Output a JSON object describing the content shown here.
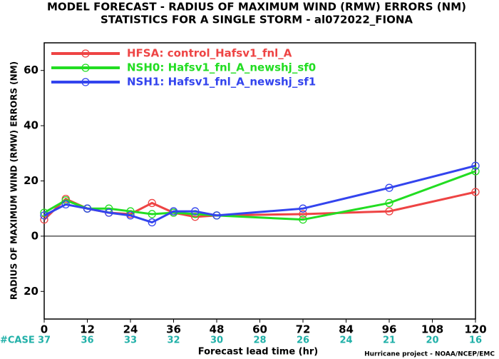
{
  "chart_data": {
    "type": "line",
    "title": "MODEL FORECAST - RADIUS OF MAXIMUM WIND (RMW) ERRORS (NM)",
    "subtitle": "STATISTICS FOR A SINGLE STORM - al072022_FIONA",
    "y_label": "RADIUS OF MAXIMUM WIND (RMW) ERRORS (NM)",
    "x_label": "Forecast lead time (hr)",
    "credit": "Hurricane project - NOAA/NCEP/EMC",
    "case_label": "#CASE",
    "case_counts": [
      37,
      36,
      33,
      32,
      30,
      28,
      26,
      24,
      21,
      20,
      16
    ],
    "x": [
      0,
      6,
      12,
      18,
      24,
      30,
      36,
      42,
      48,
      72,
      96,
      120
    ],
    "series": [
      {
        "name": "HFSA: control_Hafsv1_fnl_A",
        "color": "#ee4444",
        "values": [
          6,
          13.5,
          10,
          8.5,
          8,
          12,
          8.5,
          7,
          7.5,
          8,
          9,
          16
        ]
      },
      {
        "name": "NSH0: Hafsv1_fnl_A_newshj_sf0",
        "color": "#22dd22",
        "values": [
          8.5,
          13,
          10,
          10,
          9,
          8,
          8.5,
          8,
          7.5,
          6,
          12,
          23.5
        ]
      },
      {
        "name": "NSH1: Hafsv1_fnl_A_newshj_sf1",
        "color": "#3344ee",
        "values": [
          7.5,
          11.5,
          10,
          8.5,
          7.5,
          5,
          9,
          9,
          7.5,
          10,
          17.5,
          25.5
        ]
      }
    ],
    "xlim": [
      0,
      120
    ],
    "xticks": [
      0,
      12,
      24,
      36,
      48,
      60,
      72,
      84,
      96,
      108,
      120
    ],
    "ylim": [
      -30,
      70
    ],
    "yticks": [
      {
        "value": -20,
        "label": "20"
      },
      0,
      20,
      40,
      60
    ],
    "zero_line": true
  }
}
